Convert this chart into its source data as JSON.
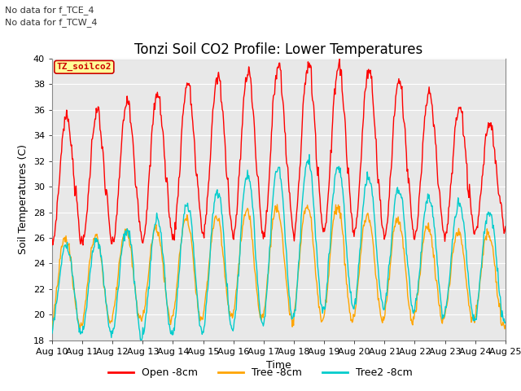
{
  "title": "Tonzi Soil CO2 Profile: Lower Temperatures",
  "xlabel": "Time",
  "ylabel": "Soil Temperatures (C)",
  "ylim": [
    18,
    40
  ],
  "yticks": [
    18,
    20,
    22,
    24,
    26,
    28,
    30,
    32,
    34,
    36,
    38,
    40
  ],
  "xlim_days": [
    0,
    15
  ],
  "xtick_labels": [
    "Aug 10",
    "Aug 11",
    "Aug 12",
    "Aug 13",
    "Aug 14",
    "Aug 15",
    "Aug 16",
    "Aug 17",
    "Aug 18",
    "Aug 19",
    "Aug 20",
    "Aug 21",
    "Aug 22",
    "Aug 23",
    "Aug 24",
    "Aug 25"
  ],
  "annotations": [
    "No data for f_TCE_4",
    "No data for f_TCW_4"
  ],
  "watermark": "TZ_soilco2",
  "legend_labels": [
    "Open -8cm",
    "Tree -8cm",
    "Tree2 -8cm"
  ],
  "line_colors": [
    "#ff0000",
    "#ffa500",
    "#00cccc"
  ],
  "background_color": "#e8e8e8",
  "title_fontsize": 12,
  "axis_label_fontsize": 9,
  "tick_fontsize": 8
}
